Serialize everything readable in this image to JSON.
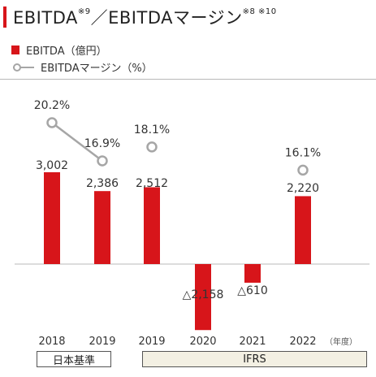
{
  "title": {
    "text_a": "EBITDA",
    "note_a": "※9",
    "separator": "／",
    "text_b": "EBITDAマージン",
    "note_b": "※8 ※10"
  },
  "legend": {
    "bar_label": "EBITDA（億円）",
    "line_label": "EBITDAマージン（%）"
  },
  "colors": {
    "bar": "#d7151a",
    "line": "#a6a6a6",
    "axis": "#b8b8b8"
  },
  "unit_label": "（年度）",
  "basis": {
    "jgaap": "日本基準",
    "ifrs": "IFRS"
  },
  "chart_data": {
    "type": "bar",
    "categories": [
      "2018",
      "2019",
      "2019",
      "2020",
      "2021",
      "2022"
    ],
    "series": [
      {
        "name": "EBITDA（億円）",
        "values": [
          3002,
          2386,
          2512,
          -2158,
          -610,
          2220
        ],
        "value_labels": [
          "3,002",
          "2,386",
          "2,512",
          "△2,158",
          "△610",
          "2,220"
        ]
      },
      {
        "name": "EBITDAマージン（%）",
        "type": "line",
        "values": [
          20.2,
          16.9,
          18.1,
          null,
          null,
          16.1
        ],
        "value_labels": [
          "20.2%",
          "16.9%",
          "18.1%",
          "",
          "",
          "16.1%"
        ],
        "connected": [
          [
            0,
            1
          ]
        ]
      }
    ]
  }
}
